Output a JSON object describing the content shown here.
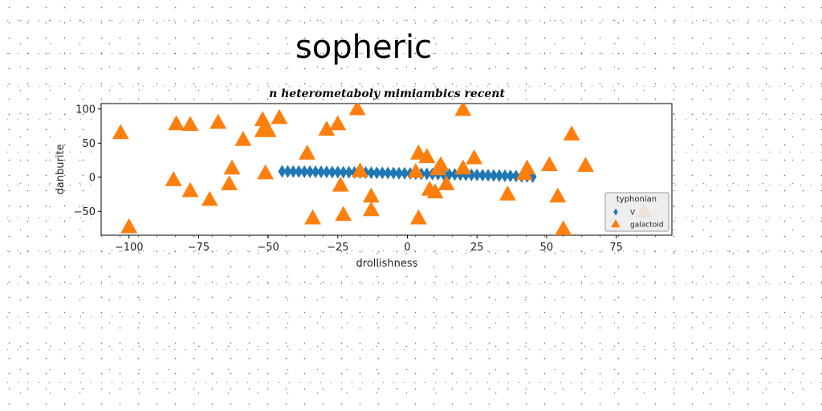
{
  "chart_data": {
    "type": "scatter",
    "title": "sopheric",
    "subtitle": "n heterometaboly mimiambics recent",
    "xlabel": "drollishness",
    "ylabel": "danburite",
    "xlim": [
      -110,
      95
    ],
    "ylim": [
      -85,
      108
    ],
    "xticks": [
      -100,
      -75,
      -50,
      -25,
      0,
      25,
      50,
      75
    ],
    "yticks": [
      -50,
      0,
      50,
      100
    ],
    "xtick_labels": [
      "−100",
      "−75",
      "−50",
      "−25",
      "0",
      "25",
      "50",
      "75"
    ],
    "ytick_labels": [
      "−50",
      "0",
      "50",
      "100"
    ],
    "grid": false,
    "legend": {
      "title": "typhonian",
      "placement": "lower-right"
    },
    "colors": {
      "V": "#1f77b4",
      "galactoid": "#ff7f0e"
    },
    "series": [
      {
        "name": "V",
        "marker": "thin-diamond",
        "points": [
          [
            -45,
            8.5
          ],
          [
            -43,
            8.4
          ],
          [
            -41,
            8.3
          ],
          [
            -39,
            8.2
          ],
          [
            -37,
            8.1
          ],
          [
            -35,
            8.0
          ],
          [
            -33,
            7.9
          ],
          [
            -31,
            7.8
          ],
          [
            -29,
            7.7
          ],
          [
            -27,
            7.6
          ],
          [
            -25,
            7.5
          ],
          [
            -23,
            7.3
          ],
          [
            -21,
            7.2
          ],
          [
            -19,
            7.0
          ],
          [
            -17,
            6.9
          ],
          [
            -15,
            6.8
          ],
          [
            -13,
            6.6
          ],
          [
            -11,
            6.5
          ],
          [
            -9,
            6.3
          ],
          [
            -7,
            6.2
          ],
          [
            -5,
            6.0
          ],
          [
            -3,
            5.8
          ],
          [
            -1,
            5.7
          ],
          [
            1,
            5.5
          ],
          [
            3,
            5.3
          ],
          [
            5,
            5.1
          ],
          [
            7,
            5.0
          ],
          [
            9,
            4.8
          ],
          [
            11,
            4.6
          ],
          [
            13,
            4.4
          ],
          [
            15,
            4.2
          ],
          [
            17,
            4.0
          ],
          [
            19,
            3.8
          ],
          [
            21,
            3.6
          ],
          [
            23,
            3.4
          ],
          [
            25,
            3.2
          ],
          [
            27,
            3.0
          ],
          [
            29,
            2.8
          ],
          [
            31,
            2.6
          ],
          [
            33,
            2.4
          ],
          [
            35,
            2.1
          ],
          [
            37,
            1.9
          ],
          [
            39,
            1.7
          ],
          [
            41,
            1.4
          ],
          [
            43,
            1.2
          ],
          [
            45,
            0.9
          ]
        ]
      },
      {
        "name": "galactoid",
        "marker": "triangle-up",
        "points": [
          [
            -103,
            65
          ],
          [
            -100,
            -73
          ],
          [
            -83,
            78
          ],
          [
            -78,
            77
          ],
          [
            -68,
            80
          ],
          [
            -84,
            -4
          ],
          [
            -78,
            -20
          ],
          [
            -71,
            -33
          ],
          [
            -63,
            13
          ],
          [
            -64,
            -10
          ],
          [
            -59,
            55
          ],
          [
            -52,
            84
          ],
          [
            -52,
            68
          ],
          [
            -50,
            68
          ],
          [
            -51,
            6
          ],
          [
            -46,
            87
          ],
          [
            -36,
            35
          ],
          [
            -34,
            -60
          ],
          [
            -29,
            70
          ],
          [
            -25,
            78
          ],
          [
            -24,
            -12
          ],
          [
            -23,
            -55
          ],
          [
            -18,
            100
          ],
          [
            -17,
            9
          ],
          [
            -13,
            -28
          ],
          [
            -13,
            -48
          ],
          [
            4,
            -60
          ],
          [
            3,
            8
          ],
          [
            4,
            35
          ],
          [
            7,
            30
          ],
          [
            8,
            -18
          ],
          [
            10,
            -22
          ],
          [
            11,
            12
          ],
          [
            12,
            18
          ],
          [
            14,
            -10
          ],
          [
            20,
            99
          ],
          [
            20,
            13
          ],
          [
            24,
            28
          ],
          [
            36,
            -25
          ],
          [
            42,
            5
          ],
          [
            43,
            13
          ],
          [
            51,
            18
          ],
          [
            54,
            -28
          ],
          [
            56,
            -76
          ],
          [
            59,
            63
          ],
          [
            64,
            17
          ],
          [
            85,
            -50
          ]
        ]
      }
    ]
  }
}
